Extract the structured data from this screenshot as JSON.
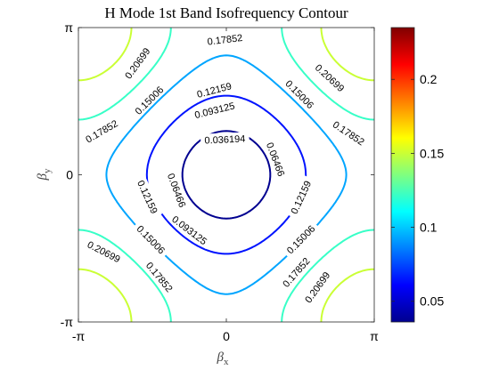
{
  "chart_data": {
    "type": "contour",
    "title": "H Mode 1st Band Isofrequency Contour",
    "xlabel": {
      "main": "β",
      "sub": "x"
    },
    "ylabel": {
      "main": "β",
      "sub": "y"
    },
    "xlim": [
      -3.14159,
      3.14159
    ],
    "ylim": [
      -3.14159,
      3.14159
    ],
    "x_ticks": [
      {
        "value": -3.14159,
        "label": "-π"
      },
      {
        "value": 0,
        "label": "0"
      },
      {
        "value": 3.14159,
        "label": "π"
      }
    ],
    "y_ticks": [
      {
        "value": -3.14159,
        "label": "-π"
      },
      {
        "value": 0,
        "label": "0"
      },
      {
        "value": 3.14159,
        "label": "π"
      }
    ],
    "colorbar": {
      "colormap": "jet",
      "range": [
        0.036,
        0.235
      ],
      "ticks": [
        {
          "value": 0.05,
          "label": "0.05"
        },
        {
          "value": 0.1,
          "label": "0.1"
        },
        {
          "value": 0.15,
          "label": "0.15"
        },
        {
          "value": 0.2,
          "label": "0.2"
        }
      ]
    },
    "levels": [
      {
        "value": 0.036194,
        "label": "0.036194",
        "label_positions": [
          [
            -0.03,
            0.76
          ]
        ]
      },
      {
        "value": 0.06466,
        "label": "0.06466",
        "label_positions": [
          [
            -1.05,
            -0.33
          ],
          [
            1.05,
            0.33
          ]
        ]
      },
      {
        "value": 0.093125,
        "label": "0.093125",
        "label_positions": [
          [
            -0.25,
            1.38
          ],
          [
            -0.78,
            -1.18
          ]
        ]
      },
      {
        "value": 0.12159,
        "label": "0.12159",
        "label_positions": [
          [
            -0.26,
            1.81
          ],
          [
            -1.67,
            -0.47
          ],
          [
            1.58,
            -0.48
          ]
        ]
      },
      {
        "value": 0.15006,
        "label": "0.15006",
        "label_positions": [
          [
            -1.64,
            1.59
          ],
          [
            1.56,
            1.72
          ],
          [
            -1.6,
            -1.38
          ],
          [
            1.58,
            -1.38
          ]
        ]
      },
      {
        "value": 0.17852,
        "label": "0.17852",
        "label_positions": [
          [
            -0.03,
            2.89
          ],
          [
            -2.65,
            0.93
          ],
          [
            2.6,
            0.89
          ],
          [
            -1.42,
            -2.18
          ],
          [
            1.48,
            -2.08
          ]
        ]
      },
      {
        "value": 0.20699,
        "label": "0.20699",
        "label_positions": [
          [
            -1.89,
            2.38
          ],
          [
            2.2,
            2.07
          ],
          [
            -2.6,
            -1.64
          ],
          [
            1.93,
            -2.4
          ]
        ]
      },
      {
        "value": 0.234,
        "label": ""
      }
    ]
  }
}
